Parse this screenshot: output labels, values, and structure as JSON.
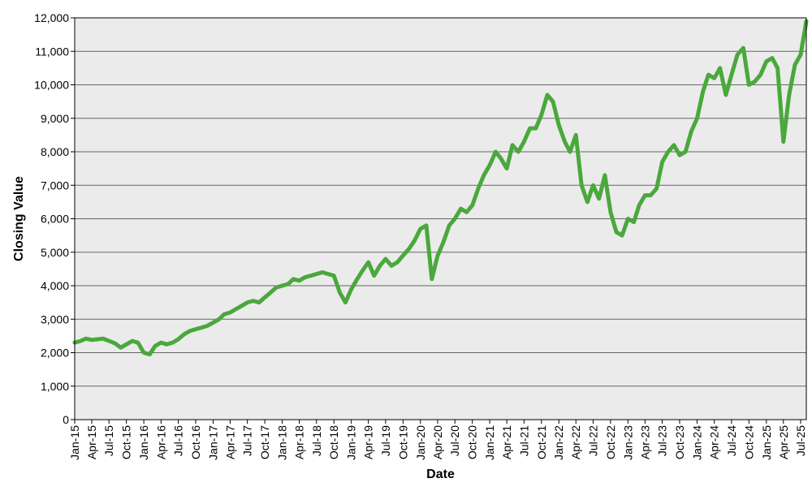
{
  "chart_data": {
    "type": "line",
    "title": "",
    "xlabel": "Date",
    "ylabel": "Closing Value",
    "ylim": [
      0,
      12000
    ],
    "yticks": [
      0,
      1000,
      2000,
      3000,
      4000,
      5000,
      6000,
      7000,
      8000,
      9000,
      10000,
      11000,
      12000
    ],
    "ytick_labels": [
      "0",
      "1,000",
      "2,000",
      "3,000",
      "4,000",
      "5,000",
      "6,000",
      "7,000",
      "8,000",
      "9,000",
      "10,000",
      "11,000",
      "12,000"
    ],
    "xlim": [
      "2015-01-01",
      "2025-07-31"
    ],
    "xtick_labels": [
      "Jan-15",
      "Apr-15",
      "Jul-15",
      "Oct-15",
      "Jan-16",
      "Apr-16",
      "Jul-16",
      "Oct-16",
      "Jan-17",
      "Apr-17",
      "Jul-17",
      "Oct-17",
      "Jan-18",
      "Apr-18",
      "Jul-18",
      "Oct-18",
      "Jan-19",
      "Apr-19",
      "Jul-19",
      "Oct-19",
      "Jan-20",
      "Apr-20",
      "Jul-20",
      "Oct-20",
      "Jan-21",
      "Apr-21",
      "Jul-21",
      "Oct-21",
      "Jan-22",
      "Apr-22",
      "Jul-22",
      "Oct-22",
      "Jan-23",
      "Apr-23",
      "Jul-23",
      "Oct-23",
      "Jan-24",
      "Apr-24",
      "Jul-24",
      "Oct-24",
      "Jan-25",
      "Apr-25",
      "Jul-25"
    ],
    "grid": true,
    "colors": {
      "line": "#4aa83c",
      "plot_background": "#ebebeb",
      "gridline": "#666666"
    },
    "series": [
      {
        "x": [
          "2015-01-01",
          "2015-02-01",
          "2015-03-01",
          "2015-04-01",
          "2015-05-01",
          "2015-06-01",
          "2015-07-01",
          "2015-08-01",
          "2015-09-01",
          "2015-10-01",
          "2015-11-01",
          "2015-12-01",
          "2016-01-01",
          "2016-02-01",
          "2016-03-01",
          "2016-04-01",
          "2016-05-01",
          "2016-06-01",
          "2016-07-01",
          "2016-08-01",
          "2016-09-01",
          "2016-10-01",
          "2016-11-01",
          "2016-12-01",
          "2017-01-01",
          "2017-02-01",
          "2017-03-01",
          "2017-04-01",
          "2017-05-01",
          "2017-06-01",
          "2017-07-01",
          "2017-08-01",
          "2017-09-01",
          "2017-10-01",
          "2017-11-01",
          "2017-12-01",
          "2018-01-01",
          "2018-02-01",
          "2018-03-01",
          "2018-04-01",
          "2018-05-01",
          "2018-06-01",
          "2018-07-01",
          "2018-08-01",
          "2018-09-01",
          "2018-10-01",
          "2018-11-01",
          "2018-12-01",
          "2019-01-01",
          "2019-02-01",
          "2019-03-01",
          "2019-04-01",
          "2019-05-01",
          "2019-06-01",
          "2019-07-01",
          "2019-08-01",
          "2019-09-01",
          "2019-10-01",
          "2019-11-01",
          "2019-12-01",
          "2020-01-01",
          "2020-02-01",
          "2020-03-01",
          "2020-04-01",
          "2020-05-01",
          "2020-06-01",
          "2020-07-01",
          "2020-08-01",
          "2020-09-01",
          "2020-10-01",
          "2020-11-01",
          "2020-12-01",
          "2021-01-01",
          "2021-02-01",
          "2021-03-01",
          "2021-04-01",
          "2021-05-01",
          "2021-06-01",
          "2021-07-01",
          "2021-08-01",
          "2021-09-01",
          "2021-10-01",
          "2021-11-01",
          "2021-12-01",
          "2022-01-01",
          "2022-02-01",
          "2022-03-01",
          "2022-04-01",
          "2022-05-01",
          "2022-06-01",
          "2022-07-01",
          "2022-08-01",
          "2022-09-01",
          "2022-10-01",
          "2022-11-01",
          "2022-12-01",
          "2023-01-01",
          "2023-02-01",
          "2023-03-01",
          "2023-04-01",
          "2023-05-01",
          "2023-06-01",
          "2023-07-01",
          "2023-08-01",
          "2023-09-01",
          "2023-10-01",
          "2023-11-01",
          "2023-12-01",
          "2024-01-01",
          "2024-02-01",
          "2024-03-01",
          "2024-04-01",
          "2024-05-01",
          "2024-06-01",
          "2024-07-01",
          "2024-08-01",
          "2024-09-01",
          "2024-10-01",
          "2024-11-01",
          "2024-12-01",
          "2025-01-01",
          "2025-02-01",
          "2025-03-01",
          "2025-04-01",
          "2025-05-01",
          "2025-06-01",
          "2025-07-01",
          "2025-07-31"
        ],
        "y": [
          2300,
          2350,
          2420,
          2380,
          2400,
          2420,
          2350,
          2280,
          2150,
          2250,
          2350,
          2300,
          2000,
          1950,
          2200,
          2300,
          2250,
          2300,
          2400,
          2550,
          2650,
          2700,
          2750,
          2800,
          2900,
          3000,
          3150,
          3200,
          3300,
          3400,
          3500,
          3550,
          3500,
          3650,
          3800,
          3950,
          4000,
          4050,
          4200,
          4150,
          4250,
          4300,
          4350,
          4400,
          4350,
          4300,
          3800,
          3500,
          3900,
          4200,
          4450,
          4700,
          4300,
          4600,
          4800,
          4600,
          4700,
          4900,
          5100,
          5350,
          5700,
          5800,
          4200,
          4900,
          5300,
          5800,
          6000,
          6300,
          6200,
          6400,
          6900,
          7300,
          7600,
          8000,
          7800,
          7500,
          8200,
          8000,
          8300,
          8700,
          8700,
          9100,
          9700,
          9500,
          8800,
          8300,
          8000,
          8500,
          7000,
          6500,
          7000,
          6600,
          7300,
          6200,
          5600,
          5500,
          6000,
          5900,
          6400,
          6700,
          6700,
          6900,
          7700,
          8000,
          8200,
          7900,
          8000,
          8600,
          9000,
          9800,
          10300,
          10200,
          10500,
          9700,
          10300,
          10900,
          11100,
          10000,
          10100,
          10300,
          10700,
          10800,
          10500,
          8300,
          9700,
          10600,
          10900,
          11900
        ]
      }
    ]
  }
}
